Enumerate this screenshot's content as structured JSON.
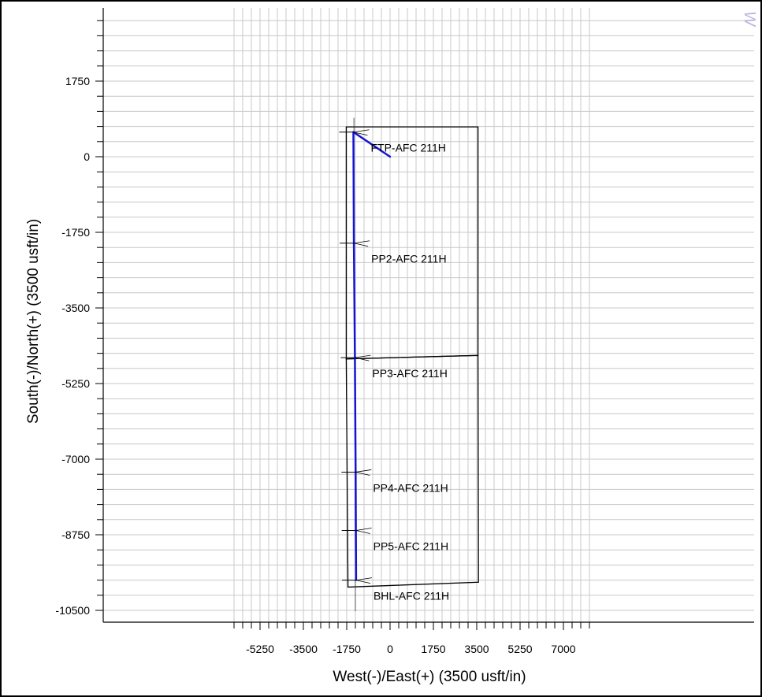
{
  "chart_data": {
    "type": "line",
    "title": "",
    "xlabel": "West(-)/East(+) (3500 usft/in)",
    "ylabel": "South(-)/North(+) (3500 usft/in)",
    "xlim": [
      -6600,
      8100
    ],
    "ylim": [
      -10500,
      3500
    ],
    "x_ticks": [
      -5250,
      -3500,
      -1750,
      0,
      1750,
      3500,
      5250,
      7000
    ],
    "y_ticks": [
      1750,
      0,
      -1750,
      -3500,
      -5250,
      -7000,
      -8750,
      -10500
    ],
    "grid": true,
    "colors": {
      "wellbore": "#1414d2",
      "boundary": "#000000",
      "grid": "#c8c8c8",
      "watermark": "#b8b4dc"
    },
    "watermark_text": "W",
    "series": [
      {
        "values": [
          {
            "x": 0,
            "y": 0
          },
          {
            "x": -1480,
            "y": 570
          },
          {
            "x": -1460,
            "y": -2000
          },
          {
            "x": -1420,
            "y": -4650
          },
          {
            "x": -1390,
            "y": -7300
          },
          {
            "x": -1380,
            "y": -8650
          },
          {
            "x": -1370,
            "y": -9800
          }
        ]
      }
    ],
    "boundaries": [
      {
        "points": [
          {
            "x": -1770,
            "y": 690
          },
          {
            "x": 3550,
            "y": 690
          },
          {
            "x": 3550,
            "y": -4600
          },
          {
            "x": -1770,
            "y": -4680
          }
        ]
      },
      {
        "points": [
          {
            "x": -1770,
            "y": -4680
          },
          {
            "x": -1700,
            "y": -9960
          },
          {
            "x": 3570,
            "y": -9850
          },
          {
            "x": 3550,
            "y": -4600
          }
        ]
      }
    ],
    "annotations": [
      {
        "text": "FTP-AFC  211H",
        "x": -1480,
        "y": 570
      },
      {
        "text": "PP2-AFC  211H",
        "x": -1460,
        "y": -2000
      },
      {
        "text": "PP3-AFC  211H",
        "x": -1420,
        "y": -4650
      },
      {
        "text": "PP4-AFC  211H",
        "x": -1390,
        "y": -7300
      },
      {
        "text": "PP5-AFC  211H",
        "x": -1380,
        "y": -8650
      },
      {
        "text": "BHL-AFC  211H",
        "x": -1370,
        "y": -9800
      }
    ]
  }
}
